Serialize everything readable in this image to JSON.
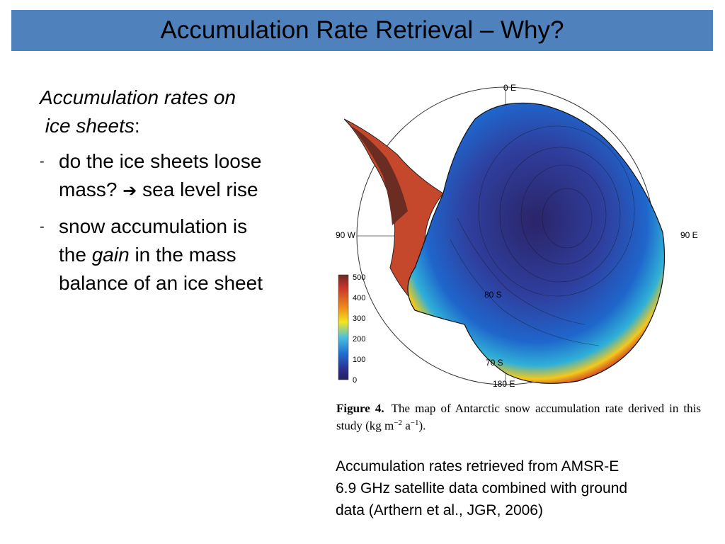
{
  "slide": {
    "title": "Accumulation Rate Retrieval – Why?"
  },
  "left_panel": {
    "heading_part1": "Accumulation rates on",
    "heading_part2": "ice sheets",
    "heading_colon": ":",
    "bullets": [
      {
        "dash": "-",
        "line1": "do the ice sheets loose",
        "line2_start": "mass?",
        "arrow_icon": "arrow-right-icon",
        "arrow_glyph": "➔",
        "line2_end": "sea level rise"
      },
      {
        "dash": "-",
        "line1": "snow accumulation is",
        "line2_start": "the",
        "line2_italic": "gain",
        "line2_end": "in the mass",
        "line3": "balance of an ice sheet"
      }
    ]
  },
  "map": {
    "labels": {
      "top": "0 E",
      "left": "90 W",
      "right": "90 E",
      "bottom": "180 E",
      "lat_80": "80 S",
      "lat_70": "70 S"
    },
    "colorbar": {
      "ticks": [
        "500",
        "400",
        "300",
        "200",
        "100",
        "0"
      ],
      "colors": [
        "#6b2c22",
        "#c7342a",
        "#f08f1a",
        "#f3e51e",
        "#49c0de",
        "#1e6fd1",
        "#2b2f8e",
        "#241f5e"
      ]
    }
  },
  "caption": {
    "label": "Figure 4.",
    "text_part1": "The map of Antarctic snow accumulation rate derived in this study (kg m",
    "sup1": "−2",
    "text_part2": " a",
    "sup2": "−1",
    "text_part3": ")."
  },
  "source_note": {
    "line1": "Accumulation rates retrieved from AMSR-E",
    "line2": "6.9 GHz satellite data combined with ground",
    "line3": "data (Arthern et al., JGR, 2006)"
  },
  "colors": {
    "title_bar": "#4f81bd"
  }
}
